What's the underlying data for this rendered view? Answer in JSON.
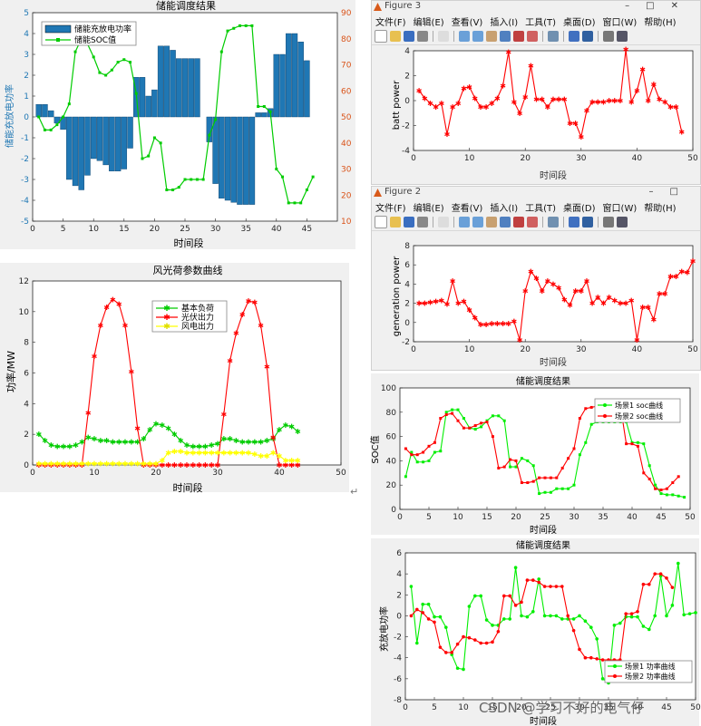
{
  "figure3": {
    "window_title": "Figure 3",
    "menu": [
      "文件(F)",
      "编辑(E)",
      "查看(V)",
      "插入(I)",
      "工具(T)",
      "桌面(D)",
      "窗口(W)",
      "帮助(H)"
    ],
    "chart": {
      "type": "line",
      "ylabel": "batt power",
      "xlabel": "时间段",
      "xlim": [
        0,
        50
      ],
      "ylim": [
        -4,
        4
      ],
      "xticks": [
        0,
        10,
        20,
        30,
        40,
        50
      ],
      "yticks": [
        -4,
        -2,
        0,
        2,
        4
      ],
      "color": "#ff0000",
      "values": [
        0.8,
        0.2,
        -0.2,
        -0.5,
        -0.2,
        -2.7,
        -0.5,
        -0.2,
        1.0,
        1.1,
        0.2,
        -0.5,
        -0.5,
        -0.2,
        0.2,
        1.2,
        3.9,
        -0.1,
        -1.0,
        0.3,
        2.8,
        0.1,
        0.1,
        -0.5,
        0.1,
        0.1,
        0.1,
        -1.8,
        -1.8,
        -2.9,
        -0.8,
        -0.1,
        -0.1,
        -0.1,
        0.0,
        0.0,
        0.0,
        4.1,
        -0.1,
        0.8,
        2.5,
        0.0,
        1.3,
        0.1,
        -0.1,
        -0.5,
        -0.5,
        -2.5
      ]
    }
  },
  "figure2": {
    "window_title": "Figure 2",
    "menu": [
      "文件(F)",
      "编辑(E)",
      "查看(V)",
      "插入(I)",
      "工具(T)",
      "桌面(D)",
      "窗口(W)",
      "帮助(H)"
    ],
    "chart": {
      "type": "line",
      "ylabel": "generation power",
      "xlabel": "时间段",
      "xlim": [
        0,
        50
      ],
      "ylim": [
        -2,
        8
      ],
      "xticks": [
        0,
        10,
        20,
        30,
        40,
        50
      ],
      "yticks": [
        -2,
        0,
        2,
        4,
        6,
        8
      ],
      "color": "#ff0000",
      "values": [
        2.0,
        2.0,
        2.1,
        2.2,
        2.3,
        1.9,
        4.3,
        2.0,
        2.2,
        1.3,
        0.5,
        -0.2,
        -0.2,
        -0.1,
        -0.1,
        -0.1,
        -0.1,
        0.1,
        -1.8,
        3.3,
        5.3,
        4.6,
        3.3,
        4.3,
        4.0,
        3.6,
        2.4,
        1.8,
        3.3,
        3.3,
        4.3,
        2.0,
        2.6,
        2.0,
        2.6,
        2.3,
        2.0,
        2.0,
        2.3,
        -1.8,
        1.6,
        1.6,
        0.3,
        3.0,
        3.0,
        4.8,
        4.8,
        5.3,
        5.2,
        6.4
      ]
    }
  },
  "storage_chart": {
    "type": "bar",
    "title": "储能调度结果",
    "xlabel": "时间段",
    "ylabel_left": "储能充放电功率",
    "ylabel_right": "",
    "xlim": [
      0,
      50
    ],
    "ylim_left": [
      -5,
      5
    ],
    "ylim_right": [
      10,
      90
    ],
    "xticks": [
      0,
      5,
      10,
      15,
      20,
      25,
      30,
      35,
      40,
      45
    ],
    "yticks_left": [
      -5,
      -4,
      -3,
      -2,
      -1,
      0,
      1,
      2,
      3,
      4,
      5
    ],
    "yticks_right": [
      10,
      20,
      30,
      40,
      50,
      60,
      70,
      80,
      90
    ],
    "legend": [
      "储能充放电功率",
      "储能SOC值"
    ],
    "bar_color": "#1f77b4",
    "soc_color": "#00cc00",
    "bar_values": [
      0.6,
      0.6,
      0.3,
      -0.3,
      -0.6,
      -3.0,
      -3.3,
      -3.5,
      -2.8,
      -2.0,
      -2.1,
      -2.3,
      -2.6,
      -2.6,
      -2.5,
      -1.5,
      1.9,
      1.9,
      1.0,
      1.3,
      3.4,
      3.4,
      3.2,
      2.8,
      2.8,
      2.8,
      2.8,
      0.0,
      -1.2,
      -3.2,
      -3.9,
      -4.0,
      -4.1,
      -4.2,
      -4.2,
      -4.2,
      0.2,
      0.2,
      0.4,
      3.0,
      3.0,
      4.0,
      4.0,
      3.6,
      2.7
    ],
    "soc_values": [
      50,
      45,
      45,
      47,
      50,
      55,
      75,
      80,
      78,
      73,
      67,
      66,
      68,
      71,
      72,
      71,
      59,
      34,
      35,
      42,
      40,
      22,
      22,
      23,
      26,
      26,
      26,
      26,
      43,
      49,
      75,
      83,
      84,
      85,
      85,
      85,
      54,
      54,
      52,
      30,
      27,
      17,
      17,
      17,
      22,
      27
    ]
  },
  "wind_solar_chart": {
    "type": "line",
    "title": "风光荷参数曲线",
    "xlabel": "时间段",
    "ylabel": "功率/MW",
    "xlim": [
      0,
      50
    ],
    "ylim": [
      0,
      12
    ],
    "xticks": [
      0,
      10,
      20,
      30,
      40,
      50
    ],
    "yticks": [
      0,
      2,
      4,
      6,
      8,
      10,
      12
    ],
    "series": [
      {
        "name": "基本负荷",
        "color": "#00cc00",
        "values": [
          2.0,
          1.6,
          1.3,
          1.2,
          1.2,
          1.2,
          1.3,
          1.5,
          1.8,
          1.7,
          1.6,
          1.6,
          1.5,
          1.5,
          1.5,
          1.5,
          1.5,
          1.7,
          2.3,
          2.7,
          2.6,
          2.4,
          2.0,
          1.6,
          1.3,
          1.2,
          1.2,
          1.2,
          1.3,
          1.4,
          1.7,
          1.7,
          1.6,
          1.5,
          1.5,
          1.5,
          1.5,
          1.6,
          1.7,
          2.3,
          2.6,
          2.5,
          2.2
        ]
      },
      {
        "name": "光伏出力",
        "color": "#ff0000",
        "values": [
          0,
          0,
          0,
          0,
          0,
          0,
          0,
          0,
          3.4,
          7.1,
          9.1,
          10.3,
          10.8,
          10.5,
          9.1,
          6.1,
          2.4,
          0,
          0,
          0,
          0,
          0,
          0,
          0,
          0,
          0,
          0,
          0,
          0,
          0,
          3.3,
          6.8,
          8.6,
          9.8,
          10.7,
          10.6,
          9.1,
          6.4,
          1.8,
          0,
          0,
          0,
          0
        ]
      },
      {
        "name": "风电出力",
        "color": "#ffff00",
        "values": [
          0.1,
          0.1,
          0.1,
          0.1,
          0.1,
          0.1,
          0.1,
          0.1,
          0.1,
          0.1,
          0.1,
          0.1,
          0.1,
          0.1,
          0.1,
          0.1,
          0.1,
          0.1,
          0.1,
          0.1,
          0.3,
          0.8,
          0.9,
          0.9,
          0.8,
          0.8,
          0.8,
          0.8,
          0.8,
          0.8,
          0.8,
          0.8,
          0.8,
          0.8,
          0.8,
          0.7,
          0.6,
          0.6,
          0.8,
          0.6,
          0.3,
          0.3,
          0.3
        ]
      }
    ]
  },
  "soc_scenario_chart": {
    "type": "line",
    "title": "储能调度结果",
    "xlabel": "时间段",
    "ylabel": "SOC值",
    "xlim": [
      0,
      50
    ],
    "ylim": [
      0,
      100
    ],
    "xticks": [
      0,
      5,
      10,
      15,
      20,
      25,
      30,
      35,
      40,
      45,
      50
    ],
    "yticks": [
      0,
      20,
      40,
      60,
      80,
      100
    ],
    "series": [
      {
        "name": "场景1 soc曲线",
        "color": "#00ee00",
        "values": [
          27,
          47,
          39,
          39,
          40,
          47,
          48,
          80,
          82,
          82,
          75,
          67,
          66,
          68,
          73,
          77,
          77,
          73,
          35,
          35,
          42,
          40,
          36,
          13,
          14,
          14,
          17,
          17,
          17,
          20,
          45,
          55,
          70,
          72,
          72,
          72,
          72,
          72,
          72,
          55,
          55,
          54,
          36,
          20,
          13,
          12,
          12,
          11,
          10
        ]
      },
      {
        "name": "场景2 soc曲线",
        "color": "#ff0000",
        "values": [
          50,
          45,
          45,
          47,
          52,
          55,
          75,
          78,
          79,
          73,
          67,
          67,
          69,
          71,
          72,
          60,
          34,
          35,
          41,
          40,
          22,
          22,
          23,
          26,
          26,
          26,
          26,
          34,
          42,
          50,
          75,
          83,
          84,
          85,
          85,
          85,
          85,
          85,
          54,
          54,
          52,
          30,
          25,
          17,
          16,
          17,
          22,
          27
        ]
      }
    ]
  },
  "power_scenario_chart": {
    "type": "line",
    "title": "储能调度结果",
    "xlabel": "时间段",
    "ylabel": "充放电功率",
    "xlim": [
      0,
      50
    ],
    "ylim": [
      -8,
      6
    ],
    "xticks": [
      0,
      5,
      10,
      15,
      20,
      25,
      30,
      35,
      40,
      45,
      50
    ],
    "yticks": [
      -8,
      -6,
      -4,
      -2,
      0,
      2,
      4,
      6
    ],
    "series": [
      {
        "name": "场景1 功率曲线",
        "color": "#00ee00",
        "values": [
          2.8,
          -2.6,
          1.1,
          1.1,
          -0.1,
          -0.1,
          -1.1,
          -3.7,
          -5.0,
          -5.1,
          0.9,
          1.9,
          1.9,
          -0.4,
          -0.9,
          -0.9,
          -0.3,
          -0.3,
          4.6,
          0.0,
          -0.1,
          0.4,
          3.5,
          0.0,
          0.0,
          0.0,
          -0.3,
          -0.3,
          -0.3,
          0.0,
          -0.5,
          -1.1,
          -2.2,
          -6.0,
          -6.4,
          -0.9,
          -0.7,
          -0.1,
          -0.1,
          -0.1,
          -1.0,
          -1.3,
          0.0,
          3.8,
          0.0,
          1.0,
          5.0,
          0.1,
          0.2,
          0.3
        ]
      },
      {
        "name": "场景2 功率曲线",
        "color": "#ff0000",
        "values": [
          0.0,
          0.6,
          0.3,
          -0.3,
          -0.6,
          -3.0,
          -3.5,
          -3.5,
          -2.7,
          -2.0,
          -2.1,
          -2.3,
          -2.6,
          -2.6,
          -2.5,
          -1.5,
          1.9,
          1.9,
          1.0,
          1.3,
          3.4,
          3.4,
          3.2,
          2.8,
          2.8,
          2.8,
          2.8,
          0.0,
          -1.4,
          -3.2,
          -4.0,
          -4.0,
          -4.1,
          -4.2,
          -4.2,
          -4.2,
          -4.2,
          0.2,
          0.2,
          0.4,
          3.0,
          3.0,
          4.0,
          4.0,
          3.6,
          2.7
        ]
      }
    ]
  },
  "watermark": "CSDN @学习不好的电气仔",
  "return_mark": "↵"
}
